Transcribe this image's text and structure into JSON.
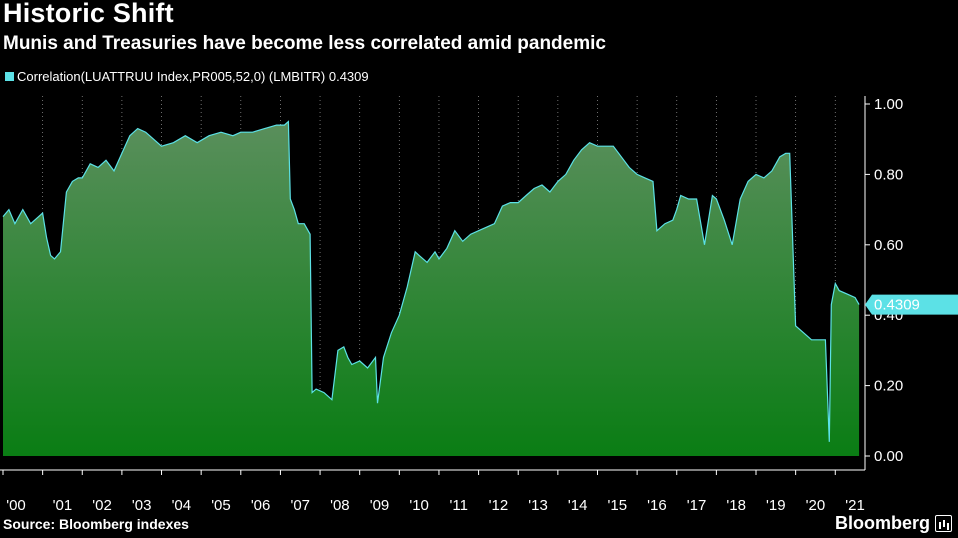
{
  "header": {
    "title": "Historic Shift",
    "subtitle": "Munis and Treasuries have become less correlated amid pandemic"
  },
  "legend": {
    "label": "Correlation(LUATTRUU Index,PR005,52,0) (LMBITR) 0.4309"
  },
  "footer": {
    "source": "Source: Bloomberg indexes",
    "brand": "Bloomberg"
  },
  "colors": {
    "background": "#000000",
    "line": "#5ce1e6",
    "area_top": "#5a8f5c",
    "area_bottom": "#0a7d14",
    "grid": "#8a8a8a"
  },
  "chart_data": {
    "type": "area",
    "title": "Historic Shift",
    "subtitle": "Munis and Treasuries have become less correlated amid pandemic",
    "xlabel": "",
    "ylabel": "",
    "ylim": [
      0,
      1
    ],
    "yticks": [
      "0.00",
      "0.20",
      "0.40",
      "0.60",
      "0.80",
      "1.00"
    ],
    "xticks": [
      "'00",
      "'01",
      "'02",
      "'03",
      "'04",
      "'05",
      "'06",
      "'07",
      "'08",
      "'09",
      "'10",
      "'11",
      "'12",
      "'13",
      "'14",
      "'15",
      "'16",
      "'17",
      "'18",
      "'19",
      "'20",
      "'21"
    ],
    "last_value_label": "0.4309",
    "grid": "vertical dotted at year boundaries",
    "legend_position": "top-left",
    "series": [
      {
        "name": "Correlation(LUATTRUU Index,PR005,52,0) (LMBITR)",
        "x": [
          2000.0,
          2000.15,
          2000.3,
          2000.5,
          2000.7,
          2000.9,
          2001.0,
          2001.1,
          2001.2,
          2001.3,
          2001.45,
          2001.6,
          2001.75,
          2001.9,
          2002.0,
          2002.2,
          2002.4,
          2002.6,
          2002.8,
          2003.0,
          2003.2,
          2003.4,
          2003.6,
          2003.8,
          2004.0,
          2004.3,
          2004.6,
          2004.9,
          2005.2,
          2005.5,
          2005.8,
          2006.0,
          2006.3,
          2006.6,
          2006.9,
          2007.1,
          2007.2,
          2007.25,
          2007.35,
          2007.45,
          2007.6,
          2007.75,
          2007.8,
          2007.9,
          2008.1,
          2008.3,
          2008.45,
          2008.6,
          2008.7,
          2008.8,
          2009.0,
          2009.2,
          2009.4,
          2009.45,
          2009.6,
          2009.8,
          2010.0,
          2010.2,
          2010.4,
          2010.5,
          2010.7,
          2010.9,
          2011.0,
          2011.2,
          2011.4,
          2011.6,
          2011.8,
          2012.0,
          2012.2,
          2012.4,
          2012.6,
          2012.8,
          2013.0,
          2013.2,
          2013.4,
          2013.6,
          2013.8,
          2014.0,
          2014.2,
          2014.4,
          2014.6,
          2014.8,
          2015.0,
          2015.2,
          2015.4,
          2015.6,
          2015.8,
          2016.0,
          2016.2,
          2016.4,
          2016.5,
          2016.7,
          2016.9,
          2017.0,
          2017.1,
          2017.3,
          2017.5,
          2017.7,
          2017.9,
          2018.0,
          2018.2,
          2018.4,
          2018.6,
          2018.8,
          2019.0,
          2019.2,
          2019.4,
          2019.6,
          2019.75,
          2019.85,
          2020.0,
          2020.2,
          2020.4,
          2020.6,
          2020.75,
          2020.85,
          2020.9,
          2021.0,
          2021.1,
          2021.3,
          2021.5,
          2021.6
        ],
        "values": [
          0.68,
          0.7,
          0.66,
          0.7,
          0.66,
          0.68,
          0.69,
          0.62,
          0.57,
          0.56,
          0.58,
          0.75,
          0.78,
          0.79,
          0.79,
          0.83,
          0.82,
          0.84,
          0.81,
          0.86,
          0.91,
          0.93,
          0.92,
          0.9,
          0.88,
          0.89,
          0.91,
          0.89,
          0.91,
          0.92,
          0.91,
          0.92,
          0.92,
          0.93,
          0.94,
          0.94,
          0.95,
          0.73,
          0.7,
          0.66,
          0.66,
          0.63,
          0.18,
          0.19,
          0.18,
          0.16,
          0.3,
          0.31,
          0.28,
          0.26,
          0.27,
          0.25,
          0.28,
          0.15,
          0.28,
          0.35,
          0.4,
          0.48,
          0.58,
          0.57,
          0.55,
          0.58,
          0.56,
          0.59,
          0.64,
          0.61,
          0.63,
          0.64,
          0.65,
          0.66,
          0.71,
          0.72,
          0.72,
          0.74,
          0.76,
          0.77,
          0.75,
          0.78,
          0.8,
          0.84,
          0.87,
          0.89,
          0.88,
          0.88,
          0.88,
          0.85,
          0.82,
          0.8,
          0.79,
          0.78,
          0.64,
          0.66,
          0.67,
          0.7,
          0.74,
          0.73,
          0.73,
          0.6,
          0.74,
          0.73,
          0.67,
          0.6,
          0.73,
          0.78,
          0.8,
          0.79,
          0.81,
          0.85,
          0.86,
          0.86,
          0.37,
          0.35,
          0.33,
          0.33,
          0.33,
          0.04,
          0.43,
          0.49,
          0.47,
          0.46,
          0.45,
          0.43
        ]
      }
    ]
  }
}
